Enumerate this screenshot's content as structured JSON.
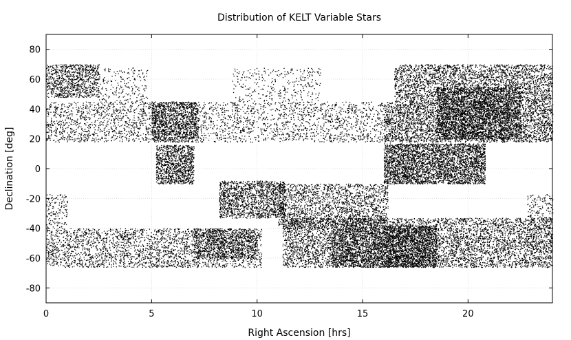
{
  "chart_data": {
    "type": "scatter",
    "title": "Distribution of KELT Variable Stars",
    "xlabel": "Right Ascension [hrs]",
    "ylabel": "Declination [deg]",
    "xlim": [
      0,
      24
    ],
    "ylim": [
      -90,
      90
    ],
    "xticks": [
      0,
      5,
      10,
      15,
      20
    ],
    "yticks": [
      -80,
      -60,
      -40,
      -20,
      0,
      20,
      40,
      60,
      80
    ],
    "grid": true,
    "marker_color": "#000000",
    "regions": [
      {
        "ra": [
          0,
          2.5
        ],
        "dec": [
          48,
          70
        ],
        "density": 1.6
      },
      {
        "ra": [
          2.5,
          4.8
        ],
        "dec": [
          45,
          68
        ],
        "density": 0.35
      },
      {
        "ra": [
          0,
          5.2
        ],
        "dec": [
          18,
          45
        ],
        "density": 0.7
      },
      {
        "ra": [
          5.0,
          7.2
        ],
        "dec": [
          18,
          45
        ],
        "density": 2.4
      },
      {
        "ra": [
          7.2,
          16.0
        ],
        "dec": [
          18,
          45
        ],
        "density": 0.55
      },
      {
        "ra": [
          8.8,
          13.0
        ],
        "dec": [
          45,
          68
        ],
        "density": 0.3
      },
      {
        "ra": [
          16.0,
          24.0
        ],
        "dec": [
          18,
          45
        ],
        "density": 1.6
      },
      {
        "ra": [
          16.5,
          24.0
        ],
        "dec": [
          45,
          70
        ],
        "density": 1.4
      },
      {
        "ra": [
          18.5,
          22.5
        ],
        "dec": [
          20,
          55
        ],
        "density": 1.8
      },
      {
        "ra": [
          5.2,
          7.0
        ],
        "dec": [
          -10,
          16
        ],
        "density": 2.2
      },
      {
        "ra": [
          16.0,
          20.8
        ],
        "dec": [
          -10,
          17
        ],
        "density": 2.6
      },
      {
        "ra": [
          8.2,
          11.3
        ],
        "dec": [
          -33,
          -8
        ],
        "density": 1.8
      },
      {
        "ra": [
          11.0,
          16.2
        ],
        "dec": [
          -40,
          -10
        ],
        "density": 1.2
      },
      {
        "ra": [
          0,
          1.0
        ],
        "dec": [
          -40,
          -17
        ],
        "density": 0.6
      },
      {
        "ra": [
          22.8,
          24.0
        ],
        "dec": [
          -40,
          -17
        ],
        "density": 0.6
      },
      {
        "ra": [
          0,
          10.2
        ],
        "dec": [
          -66,
          -40
        ],
        "density": 0.95
      },
      {
        "ra": [
          7.0,
          10.0
        ],
        "dec": [
          -60,
          -40
        ],
        "density": 1.4
      },
      {
        "ra": [
          11.2,
          24.0
        ],
        "dec": [
          -66,
          -33
        ],
        "density": 1.3
      },
      {
        "ra": [
          16.0,
          18.5
        ],
        "dec": [
          -66,
          -38
        ],
        "density": 2.4
      },
      {
        "ra": [
          13.5,
          16.0
        ],
        "dec": [
          -66,
          -40
        ],
        "density": 1.6
      }
    ]
  }
}
